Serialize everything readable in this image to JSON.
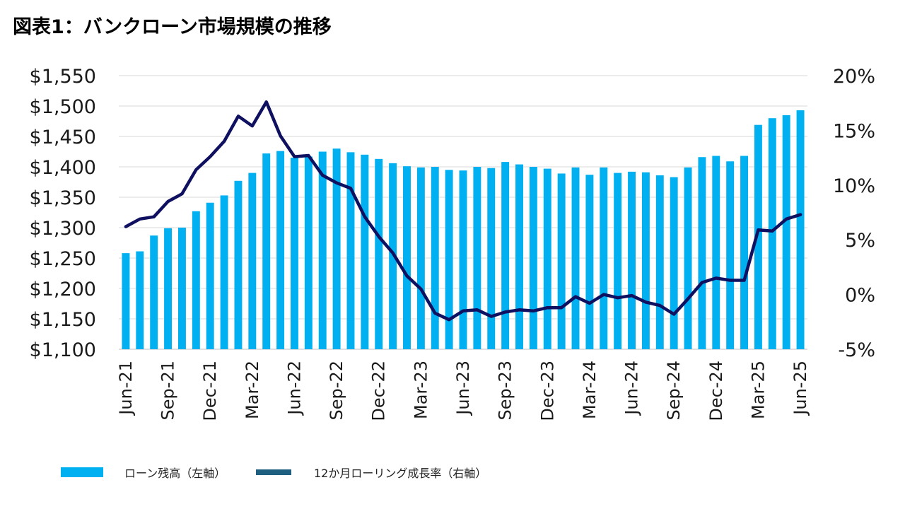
{
  "title": "図表1：バンクローン市場規模の推移",
  "chart_data": {
    "type": "bar+line",
    "title": "図表1：バンクローン市場規模の推移",
    "categories": [
      "Jun-21",
      "Jul-21",
      "Aug-21",
      "Sep-21",
      "Oct-21",
      "Nov-21",
      "Dec-21",
      "Jan-22",
      "Feb-22",
      "Mar-22",
      "Apr-22",
      "May-22",
      "Jun-22",
      "Jul-22",
      "Aug-22",
      "Sep-22",
      "Oct-22",
      "Nov-22",
      "Dec-22",
      "Jan-23",
      "Feb-23",
      "Mar-23",
      "Apr-23",
      "May-23",
      "Jun-23",
      "Jul-23",
      "Aug-23",
      "Sep-23",
      "Oct-23",
      "Nov-23",
      "Dec-23",
      "Jan-24",
      "Feb-24",
      "Mar-24",
      "Apr-24",
      "May-24",
      "Jun-24",
      "Jul-24",
      "Aug-24",
      "Sep-24",
      "Oct-24",
      "Nov-24",
      "Dec-24",
      "Jan-25",
      "Feb-25",
      "Mar-25",
      "Apr-25",
      "May-25",
      "Jun-25"
    ],
    "x_tick_labels": [
      "Jun-21",
      "Sep-21",
      "Dec-21",
      "Mar-22",
      "Jun-22",
      "Sep-22",
      "Dec-22",
      "Mar-23",
      "Jun-23",
      "Sep-23",
      "Dec-23",
      "Mar-24",
      "Jun-24",
      "Sep-24",
      "Dec-24",
      "Mar-25",
      "Jun-25"
    ],
    "series": [
      {
        "name": "ローン残高（左軸）",
        "type": "bar",
        "axis": "left",
        "color": "#00b0f0",
        "values": [
          1258,
          1261,
          1287,
          1299,
          1300,
          1327,
          1341,
          1353,
          1377,
          1390,
          1422,
          1426,
          1415,
          1417,
          1425,
          1430,
          1424,
          1420,
          1413,
          1406,
          1401,
          1399,
          1400,
          1395,
          1394,
          1400,
          1398,
          1408,
          1404,
          1400,
          1397,
          1389,
          1399,
          1387,
          1399,
          1390,
          1392,
          1391,
          1386,
          1383,
          1399,
          1416,
          1418,
          1409,
          1418,
          1469,
          1480,
          1485,
          1493
        ]
      },
      {
        "name": "12か月ローリング成長率（右軸）",
        "type": "line",
        "axis": "right",
        "color": "#101060",
        "values": [
          6.2,
          6.9,
          7.1,
          8.5,
          9.2,
          11.4,
          12.6,
          14.0,
          16.3,
          15.4,
          17.6,
          14.5,
          12.6,
          12.7,
          10.9,
          10.2,
          9.7,
          7.1,
          5.3,
          3.8,
          1.7,
          0.5,
          -1.7,
          -2.3,
          -1.5,
          -1.4,
          -2.0,
          -1.6,
          -1.4,
          -1.5,
          -1.2,
          -1.2,
          -0.2,
          -0.8,
          0.0,
          -0.3,
          -0.1,
          -0.7,
          -1.0,
          -1.8,
          -0.4,
          1.1,
          1.5,
          1.3,
          1.3,
          5.9,
          5.8,
          6.9,
          7.3
        ]
      }
    ],
    "left_axis": {
      "min": 1100,
      "max": 1550,
      "ticks": [
        "$1,550",
        "$1,500",
        "$1,450",
        "$1,400",
        "$1,350",
        "$1,300",
        "$1,250",
        "$1,200",
        "$1,150",
        "$1,100"
      ],
      "tick_values": [
        1550,
        1500,
        1450,
        1400,
        1350,
        1300,
        1250,
        1200,
        1150,
        1100
      ]
    },
    "right_axis": {
      "min": -5,
      "max": 20,
      "ticks": [
        "20%",
        "15%",
        "10%",
        "5%",
        "0%",
        "-5%"
      ],
      "tick_values": [
        20,
        15,
        10,
        5,
        0,
        -5
      ]
    },
    "grid": true,
    "legend_position": "bottom"
  }
}
